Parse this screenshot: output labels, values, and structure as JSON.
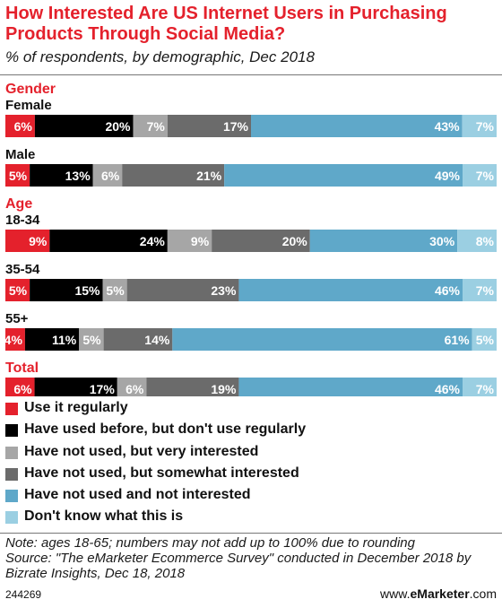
{
  "header": {
    "title": "How Interested Are US Internet Users in Purchasing Products Through Social Media?",
    "subtitle": "% of respondents, by demographic, Dec 2018"
  },
  "chart_data": {
    "type": "bar",
    "orientation": "horizontal",
    "stacked": true,
    "value_unit": "%",
    "groups": [
      {
        "label": "Gender",
        "rows": [
          {
            "label": "Female",
            "values": [
              6,
              20,
              7,
              17,
              43,
              7
            ]
          },
          {
            "label": "Male",
            "values": [
              5,
              13,
              6,
              21,
              49,
              7
            ]
          }
        ]
      },
      {
        "label": "Age",
        "rows": [
          {
            "label": "18-34",
            "values": [
              9,
              24,
              9,
              20,
              30,
              8
            ]
          },
          {
            "label": "35-54",
            "values": [
              5,
              15,
              5,
              23,
              46,
              7
            ]
          },
          {
            "label": "55+",
            "values": [
              4,
              11,
              5,
              14,
              61,
              5
            ]
          }
        ]
      },
      {
        "label": "Total",
        "rows": [
          {
            "label": "",
            "values": [
              6,
              17,
              6,
              19,
              46,
              7
            ]
          }
        ]
      }
    ],
    "series": [
      {
        "name": "Use it regularly",
        "color": "#e4212c",
        "label_color": "#ffffff"
      },
      {
        "name": "Have used before, but don't use regularly",
        "color": "#000000",
        "label_color": "#ffffff"
      },
      {
        "name": "Have not used, but very interested",
        "color": "#a6a6a6",
        "label_color": "#ffffff"
      },
      {
        "name": "Have not used, but somewhat interested",
        "color": "#6b6b6b",
        "label_color": "#ffffff"
      },
      {
        "name": "Have not used and not interested",
        "color": "#5fa8c9",
        "label_color": "#ffffff"
      },
      {
        "name": "Don't know what this is",
        "color": "#9bcfe2",
        "label_color": "#ffffff"
      }
    ],
    "legend_position": "bottom",
    "group_label_color": "#e4212c"
  },
  "footer": {
    "note": "Note: ages 18-65; numbers may not add up to 100% due to rounding",
    "source": "Source: \"The eMarketer Ecommerce Survey\" conducted in December 2018 by Bizrate Insights, Dec 18, 2018",
    "chart_id": "244269",
    "brand_prefix": "www.",
    "brand_bold": "eMarketer",
    "brand_suffix": ".com"
  }
}
